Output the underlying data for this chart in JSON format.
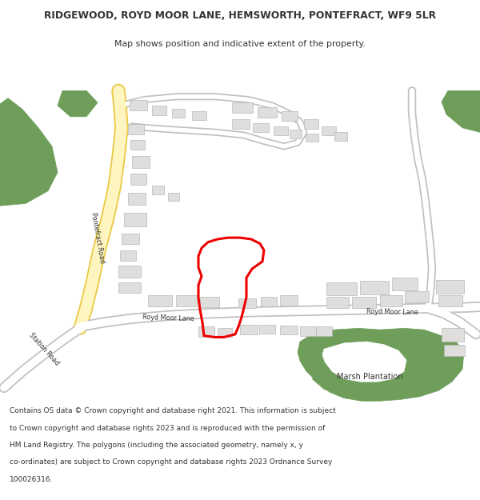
{
  "title_line1": "RIDGEWOOD, ROYD MOOR LANE, HEMSWORTH, PONTEFRACT, WF9 5LR",
  "title_line2": "Map shows position and indicative extent of the property.",
  "footer_lines": [
    "Contains OS data © Crown copyright and database right 2021. This information is subject",
    "to Crown copyright and database rights 2023 and is reproduced with the permission of",
    "HM Land Registry. The polygons (including the associated geometry, namely x, y",
    "co-ordinates) are subject to Crown copyright and database rights 2023 Ordnance Survey",
    "100026316."
  ],
  "map_bg": "#f8f7f2",
  "road_yellow_fill": "#fef5c0",
  "road_yellow_border": "#e8c840",
  "road_white_fill": "#ffffff",
  "road_white_border": "#c0c0c0",
  "building_fill": "#e0dedd",
  "building_edge": "#b8b8b8",
  "green_fill": "#6e9e5a",
  "red_color": "#ee0000",
  "text_dark": "#333333",
  "road_text": "#333333"
}
